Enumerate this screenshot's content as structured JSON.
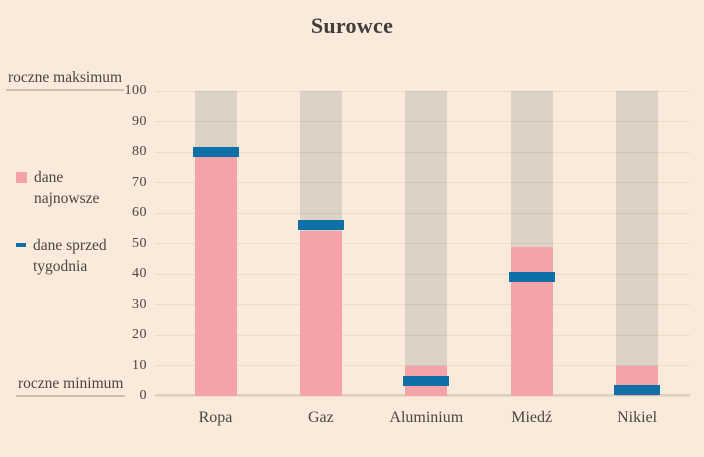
{
  "title": "Surowce",
  "annotations": {
    "max_label": "roczne maksimum",
    "min_label": "roczne minimum"
  },
  "legend": {
    "position": "left",
    "items": [
      {
        "label": "dane najnowsze",
        "swatch": "pink-square"
      },
      {
        "label": "dane sprzed tygodnia",
        "swatch": "blue-dash"
      }
    ]
  },
  "colors": {
    "background": "#faeadb",
    "range_bar": "#ddd2c6",
    "latest_bar": "#f6a2a9",
    "week_ago_marker": "#0e70a6",
    "text": "#4a4641",
    "title": "#403e3b",
    "axis_line": "#ddd0c3",
    "annotation_underline": "#cbbeb1"
  },
  "chart_data": {
    "type": "bar",
    "title": "Surowce",
    "categories": [
      "Ropa",
      "Gaz",
      "Aluminium",
      "Miedź",
      "Nikiel"
    ],
    "series": [
      {
        "name": "dane najnowsze",
        "type": "bar",
        "values": [
          79,
          54,
          10,
          49,
          10
        ]
      },
      {
        "name": "dane sprzed tygodnia",
        "type": "dash-marker",
        "values": [
          80,
          56,
          5,
          39,
          2
        ]
      }
    ],
    "range": {
      "max_label": "roczne maksimum",
      "max": 100,
      "min_label": "roczne minimum",
      "min": 0
    },
    "y_ticks": [
      0,
      10,
      20,
      30,
      40,
      50,
      60,
      70,
      80,
      90,
      100
    ],
    "ylim": [
      0,
      100
    ],
    "grid": true,
    "legend_position": "left"
  }
}
